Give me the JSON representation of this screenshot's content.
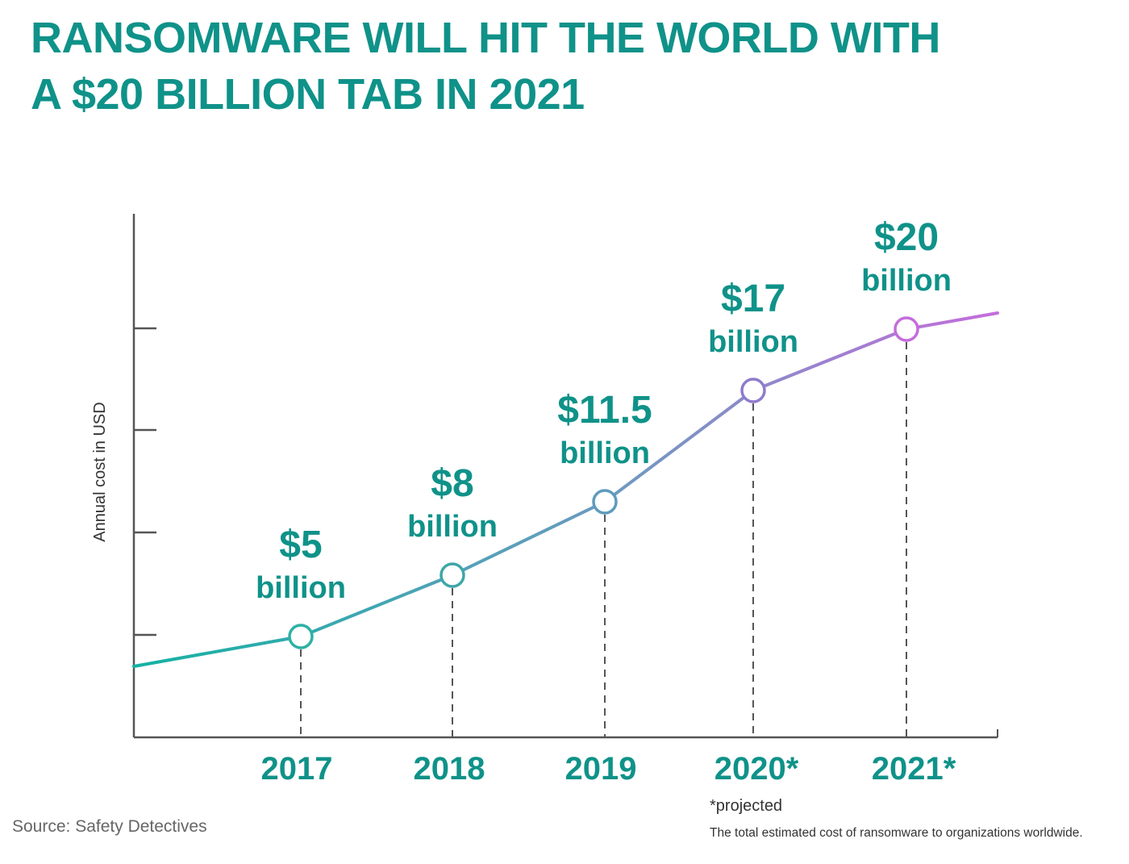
{
  "title_lines": [
    "RANSOMWARE WILL HIT THE WORLD WITH",
    "A $20 BILLION TAB IN 2021"
  ],
  "source": "Source: Safety Detectives",
  "footnote": "*projected",
  "caption": "The total estimated cost of ransomware to organizations worldwide.",
  "colors": {
    "title": "#0f9289",
    "labels": "#0f9289",
    "axis": "#555555",
    "line_start": "#14b2a3",
    "line_mid": "#6d9ac0",
    "line_end": "#c46ddb",
    "dashes": "#555555"
  },
  "chart_data": {
    "type": "line",
    "title": "RANSOMWARE WILL HIT THE WORLD WITH A $20 BILLION TAB IN 2021",
    "ylabel": "Annual cost in USD",
    "xlabel": "",
    "categories": [
      "2017",
      "2018",
      "2019",
      "2020*",
      "2021*"
    ],
    "values": [
      5,
      8,
      11.5,
      17,
      20
    ],
    "value_labels": [
      "$5",
      "$8",
      "$11.5",
      "$17",
      "$20"
    ],
    "unit_label": "billion",
    "projected": [
      "2020*",
      "2021*"
    ],
    "line_extends_beyond_points": true,
    "grid": false
  }
}
